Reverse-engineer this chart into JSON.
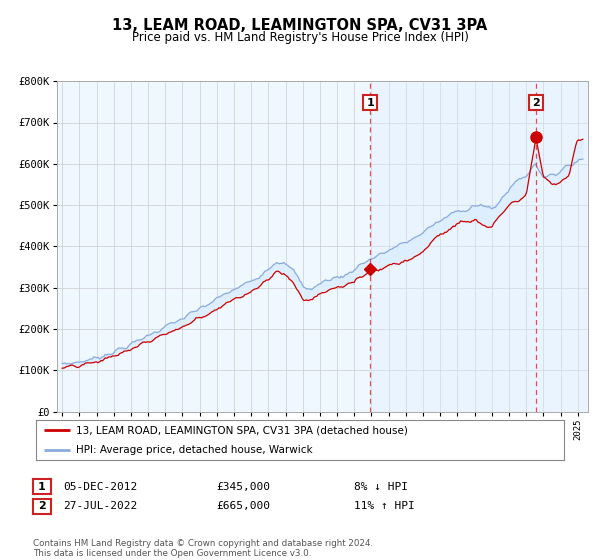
{
  "title": "13, LEAM ROAD, LEAMINGTON SPA, CV31 3PA",
  "subtitle": "Price paid vs. HM Land Registry's House Price Index (HPI)",
  "legend_line1": "13, LEAM ROAD, LEAMINGTON SPA, CV31 3PA (detached house)",
  "legend_line2": "HPI: Average price, detached house, Warwick",
  "annotation1_label": "1",
  "annotation1_date": "05-DEC-2012",
  "annotation1_price": "£345,000",
  "annotation1_pct": "8% ↓ HPI",
  "annotation2_label": "2",
  "annotation2_date": "27-JUL-2022",
  "annotation2_price": "£665,000",
  "annotation2_pct": "11% ↑ HPI",
  "footnote": "Contains HM Land Registry data © Crown copyright and database right 2024.\nThis data is licensed under the Open Government Licence v3.0.",
  "red_line_color": "#cc0000",
  "blue_line_color": "#88aadd",
  "blue_fill_color": "#ddeeff",
  "vline_color": "#dd3333",
  "marker1_x": 2012.92,
  "marker1_y": 345000,
  "marker2_x": 2022.57,
  "marker2_y": 665000,
  "x_start": 1995.0,
  "x_end": 2025.3,
  "y_min": 0,
  "y_max": 800000,
  "y_ticks": [
    0,
    100000,
    200000,
    300000,
    400000,
    500000,
    600000,
    700000,
    800000
  ],
  "y_tick_labels": [
    "£0",
    "£100K",
    "£200K",
    "£300K",
    "£400K",
    "£500K",
    "£600K",
    "£700K",
    "£800K"
  ],
  "x_ticks": [
    1995,
    1996,
    1997,
    1998,
    1999,
    2000,
    2001,
    2002,
    2003,
    2004,
    2005,
    2006,
    2007,
    2008,
    2009,
    2010,
    2011,
    2012,
    2013,
    2014,
    2015,
    2016,
    2017,
    2018,
    2019,
    2020,
    2021,
    2022,
    2023,
    2024,
    2025
  ],
  "background_color": "#ffffff",
  "plot_bg_color": "#f0f8ff",
  "grid_color": "#cccccc",
  "hpi_anchors_x": [
    1995.0,
    1996.0,
    1997.0,
    1998.0,
    1999.0,
    2000.0,
    2001.0,
    2002.0,
    2003.5,
    2004.5,
    2005.5,
    2006.5,
    2007.5,
    2008.0,
    2008.5,
    2009.0,
    2009.5,
    2010.0,
    2010.5,
    2011.0,
    2011.5,
    2012.0,
    2012.5,
    2013.0,
    2013.5,
    2014.0,
    2014.5,
    2015.0,
    2015.5,
    2016.0,
    2016.5,
    2017.0,
    2017.5,
    2018.0,
    2018.5,
    2019.0,
    2019.5,
    2020.0,
    2020.5,
    2021.0,
    2021.5,
    2022.0,
    2022.5,
    2023.0,
    2023.5,
    2024.0,
    2024.5,
    2025.0
  ],
  "hpi_anchors_y": [
    115000,
    120000,
    130000,
    145000,
    162000,
    185000,
    205000,
    225000,
    260000,
    285000,
    305000,
    330000,
    365000,
    355000,
    340000,
    305000,
    295000,
    310000,
    320000,
    325000,
    330000,
    345000,
    360000,
    370000,
    380000,
    390000,
    400000,
    410000,
    420000,
    435000,
    450000,
    460000,
    475000,
    485000,
    490000,
    500000,
    498000,
    488000,
    510000,
    540000,
    560000,
    570000,
    600000,
    570000,
    575000,
    580000,
    595000,
    610000
  ],
  "red_anchors_x": [
    1995.0,
    1996.0,
    1997.0,
    1998.0,
    1999.0,
    2000.0,
    2001.0,
    2002.0,
    2003.5,
    2004.5,
    2005.5,
    2006.5,
    2007.5,
    2008.0,
    2008.5,
    2009.0,
    2009.5,
    2010.0,
    2010.5,
    2011.0,
    2011.5,
    2012.0,
    2012.5,
    2012.92,
    2013.0,
    2013.5,
    2014.0,
    2014.5,
    2015.0,
    2015.5,
    2016.0,
    2016.5,
    2017.0,
    2017.5,
    2018.0,
    2018.5,
    2019.0,
    2019.5,
    2020.0,
    2020.5,
    2021.0,
    2021.5,
    2022.0,
    2022.57,
    2023.0,
    2023.5,
    2024.0,
    2024.5,
    2025.0
  ],
  "red_anchors_y": [
    105000,
    110000,
    120000,
    135000,
    150000,
    170000,
    188000,
    205000,
    238000,
    262000,
    280000,
    305000,
    340000,
    330000,
    310000,
    272000,
    270000,
    285000,
    295000,
    300000,
    305000,
    315000,
    330000,
    345000,
    340000,
    345000,
    355000,
    360000,
    365000,
    375000,
    388000,
    410000,
    428000,
    440000,
    455000,
    460000,
    462000,
    450000,
    445000,
    475000,
    498000,
    510000,
    520000,
    665000,
    570000,
    548000,
    555000,
    575000,
    660000
  ]
}
